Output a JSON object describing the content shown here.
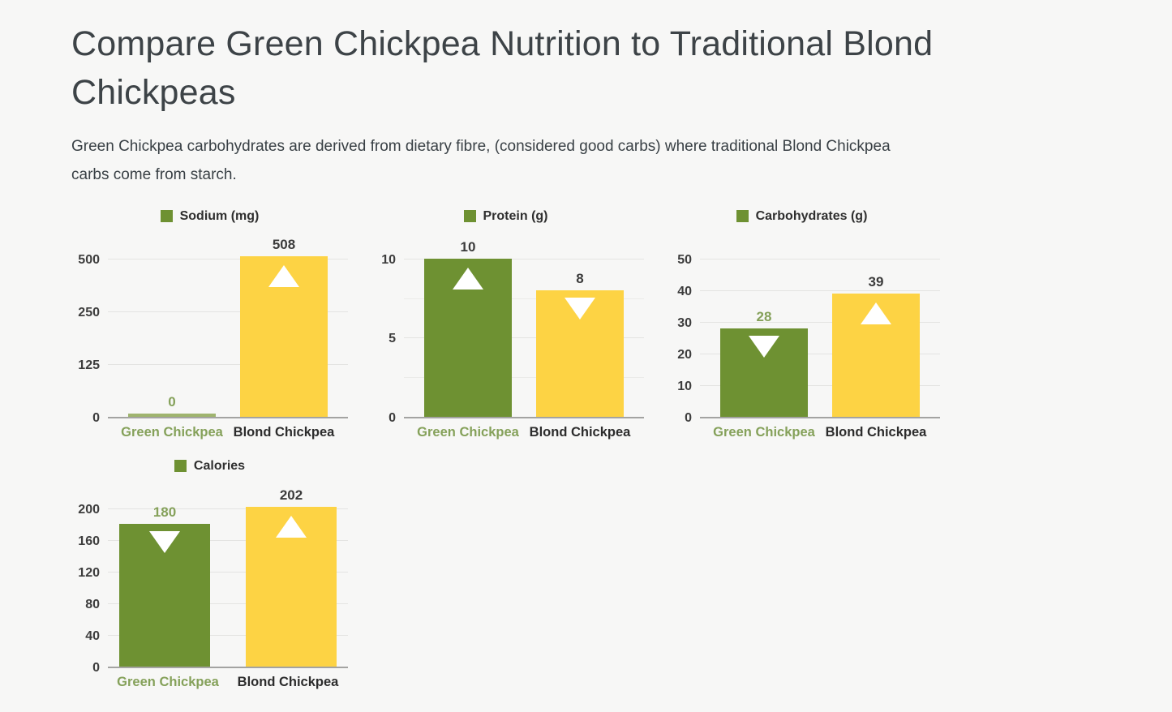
{
  "page": {
    "title": "Compare Green Chickpea Nutrition to Traditional Blond\nChickpeas",
    "description": "Green Chickpea carbohydrates are derived from dietary fibre, (considered good carbs) where traditional Blond Chickpea\ncarbs come from starch."
  },
  "colors": {
    "background": "#f7f7f6",
    "green_bar": "#6e9132",
    "green_bar_light": "#9fb46e",
    "yellow_bar": "#fdd344",
    "green_text": "#85a15a",
    "dark_text": "#3b3b3b",
    "category_dark": "#2c2c2c",
    "tick_text": "#3d3d3d",
    "gridline": "#e4e4e2",
    "baseline": "#a3a3a1"
  },
  "chart_data": [
    {
      "type": "bar",
      "title": "Sodium (mg)",
      "legend_position": "top",
      "grid": true,
      "categories": [
        "Green Chickpea",
        "Blond Chickpea"
      ],
      "values": [
        0,
        508
      ],
      "yticks": [
        "0",
        "125",
        "250",
        "500"
      ],
      "ylim": [
        0,
        508
      ],
      "presentation": {
        "bar_heights_pct": [
          2,
          101.5
        ],
        "bar_colors": [
          "#9fb46e",
          "#fdd344"
        ],
        "value_labels": [
          "0",
          "508"
        ],
        "value_label_colors": [
          "#85a15a",
          "#3b3b3b"
        ],
        "arrows": [
          "none",
          "up"
        ],
        "category_colors": [
          "#85a15a",
          "#2c2c2c"
        ],
        "minor_grid_pct": []
      }
    },
    {
      "type": "bar",
      "title": "Protein (g)",
      "legend_position": "top",
      "grid": true,
      "categories": [
        "Green Chickpea",
        "Blond Chickpea"
      ],
      "values": [
        10,
        8
      ],
      "yticks": [
        "0",
        "5",
        "10"
      ],
      "ylim": [
        0,
        10
      ],
      "presentation": {
        "bar_heights_pct": [
          100,
          80
        ],
        "bar_colors": [
          "#6e9132",
          "#fdd344"
        ],
        "value_labels": [
          "10",
          "8"
        ],
        "value_label_colors": [
          "#3b3b3b",
          "#3b3b3b"
        ],
        "arrows": [
          "up",
          "down"
        ],
        "category_colors": [
          "#85a15a",
          "#2c2c2c"
        ],
        "minor_grid_pct": [
          25,
          75
        ]
      }
    },
    {
      "type": "bar",
      "title": "Carbohydrates (g)",
      "legend_position": "top",
      "grid": true,
      "categories": [
        "Green Chickpea",
        "Blond Chickpea"
      ],
      "values": [
        28,
        39
      ],
      "yticks": [
        "0",
        "10",
        "20",
        "30",
        "40",
        "50"
      ],
      "ylim": [
        0,
        50
      ],
      "presentation": {
        "bar_heights_pct": [
          56,
          78
        ],
        "bar_colors": [
          "#6e9132",
          "#fdd344"
        ],
        "value_labels": [
          "28",
          "39"
        ],
        "value_label_colors": [
          "#85a15a",
          "#3b3b3b"
        ],
        "arrows": [
          "down",
          "up"
        ],
        "category_colors": [
          "#85a15a",
          "#2c2c2c"
        ],
        "minor_grid_pct": []
      }
    },
    {
      "type": "bar",
      "title": "Calories",
      "legend_position": "top",
      "grid": true,
      "categories": [
        "Green Chickpea",
        "Blond Chickpea"
      ],
      "values": [
        180,
        202
      ],
      "yticks": [
        "0",
        "40",
        "80",
        "120",
        "160",
        "200"
      ],
      "ylim": [
        0,
        202
      ],
      "presentation": {
        "bar_heights_pct": [
          90,
          101
        ],
        "bar_colors": [
          "#6e9132",
          "#fdd344"
        ],
        "value_labels": [
          "180",
          "202"
        ],
        "value_label_colors": [
          "#85a15a",
          "#3b3b3b"
        ],
        "arrows": [
          "down",
          "up"
        ],
        "category_colors": [
          "#85a15a",
          "#2c2c2c"
        ],
        "minor_grid_pct": []
      }
    }
  ]
}
